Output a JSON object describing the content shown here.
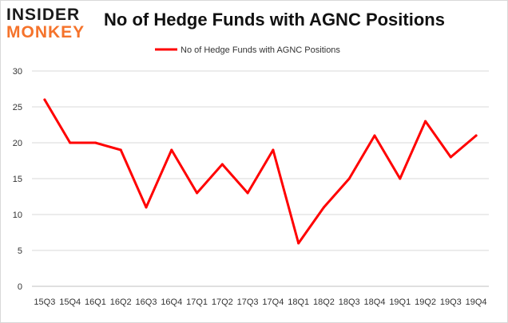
{
  "logo": {
    "line1": "INSIDER",
    "line2": "MONKEY"
  },
  "chart_data": {
    "type": "line",
    "title": "No of Hedge Funds with AGNC Positions",
    "xlabel": "",
    "ylabel": "",
    "categories": [
      "15Q3",
      "15Q4",
      "16Q1",
      "16Q2",
      "16Q3",
      "16Q4",
      "17Q1",
      "17Q2",
      "17Q3",
      "17Q4",
      "18Q1",
      "18Q2",
      "18Q3",
      "18Q4",
      "19Q1",
      "19Q2",
      "19Q3",
      "19Q4"
    ],
    "series": [
      {
        "name": "No of Hedge Funds with AGNC Positions",
        "color": "#ff0000",
        "values": [
          26,
          20,
          20,
          19,
          11,
          19,
          13,
          17,
          13,
          19,
          6,
          11,
          15,
          21,
          15,
          23,
          18,
          21
        ]
      }
    ],
    "ylim": [
      0,
      30
    ],
    "yticks": [
      0,
      5,
      10,
      15,
      20,
      25,
      30
    ],
    "grid": true,
    "legend": "top-center"
  }
}
